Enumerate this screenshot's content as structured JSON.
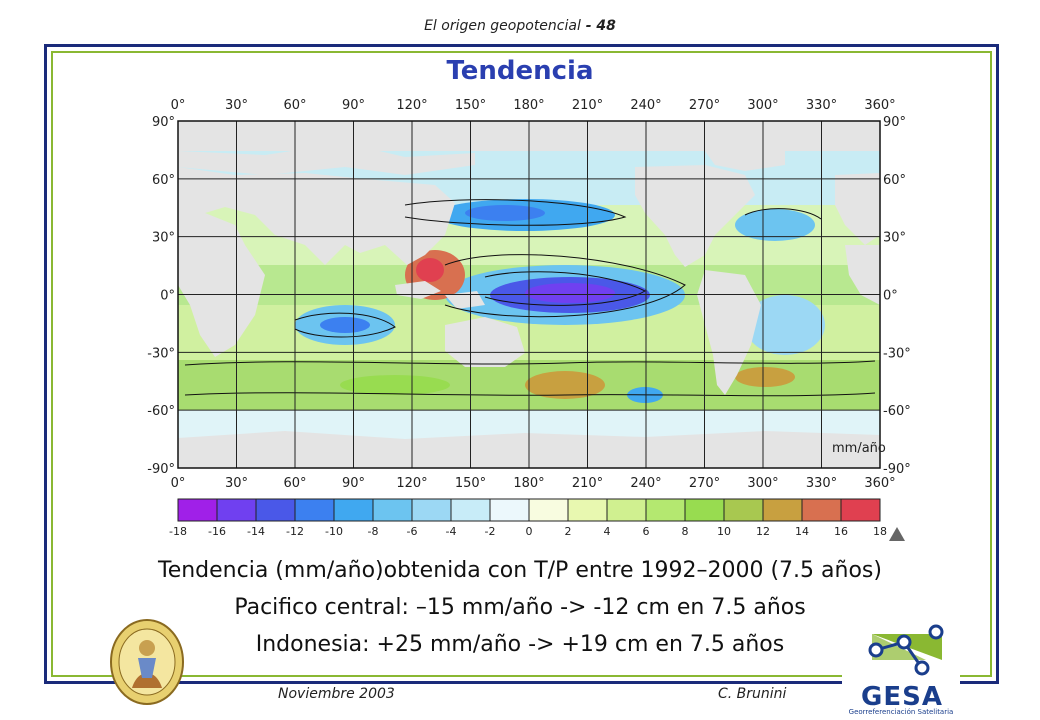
{
  "header": {
    "title": "El origen geopotencial",
    "separator": " - ",
    "page": "48"
  },
  "slide": {
    "title": "Tendencia"
  },
  "map": {
    "unit_label": "mm/año",
    "lon_ticks": [
      "0°",
      "30°",
      "60°",
      "90°",
      "120°",
      "150°",
      "180°",
      "210°",
      "240°",
      "270°",
      "300°",
      "330°",
      "360°"
    ],
    "lat_ticks": [
      "90°",
      "60°",
      "30°",
      "0°",
      "-30°",
      "-60°",
      "-90°"
    ],
    "colorbar_ticks": [
      "-18",
      "-16",
      "-14",
      "-12",
      "-10",
      "-8",
      "-6",
      "-4",
      "-2",
      "0",
      "2",
      "4",
      "6",
      "8",
      "10",
      "12",
      "14",
      "16",
      "18"
    ],
    "colorbar_colors": [
      "#a020e8",
      "#7040f0",
      "#4a58e8",
      "#3c80f0",
      "#40a8f0",
      "#6cc4f0",
      "#9cd8f4",
      "#c8ecf8",
      "#ecf8fc",
      "#f8fce0",
      "#e8f8b0",
      "#d0f090",
      "#b4e870",
      "#98dc50",
      "#a8c850",
      "#c8a040",
      "#d87050",
      "#e04050"
    ],
    "land_color": "#e4e4e4"
  },
  "captions": {
    "line1": "Tendencia (mm/año)obtenida con T/P entre 1992–2000 (7.5 años)",
    "line2": "Pacifico central: –15 mm/año -> -12 cm en 7.5 años",
    "line3": "Indonesia: +25 mm/año -> +19 cm en 7.5 años"
  },
  "footer": {
    "date": "Noviembre 2003",
    "author": "C. Brunini"
  },
  "logo": {
    "name": "GESA",
    "subtitle": "Georreferenciación Satelitaria"
  }
}
